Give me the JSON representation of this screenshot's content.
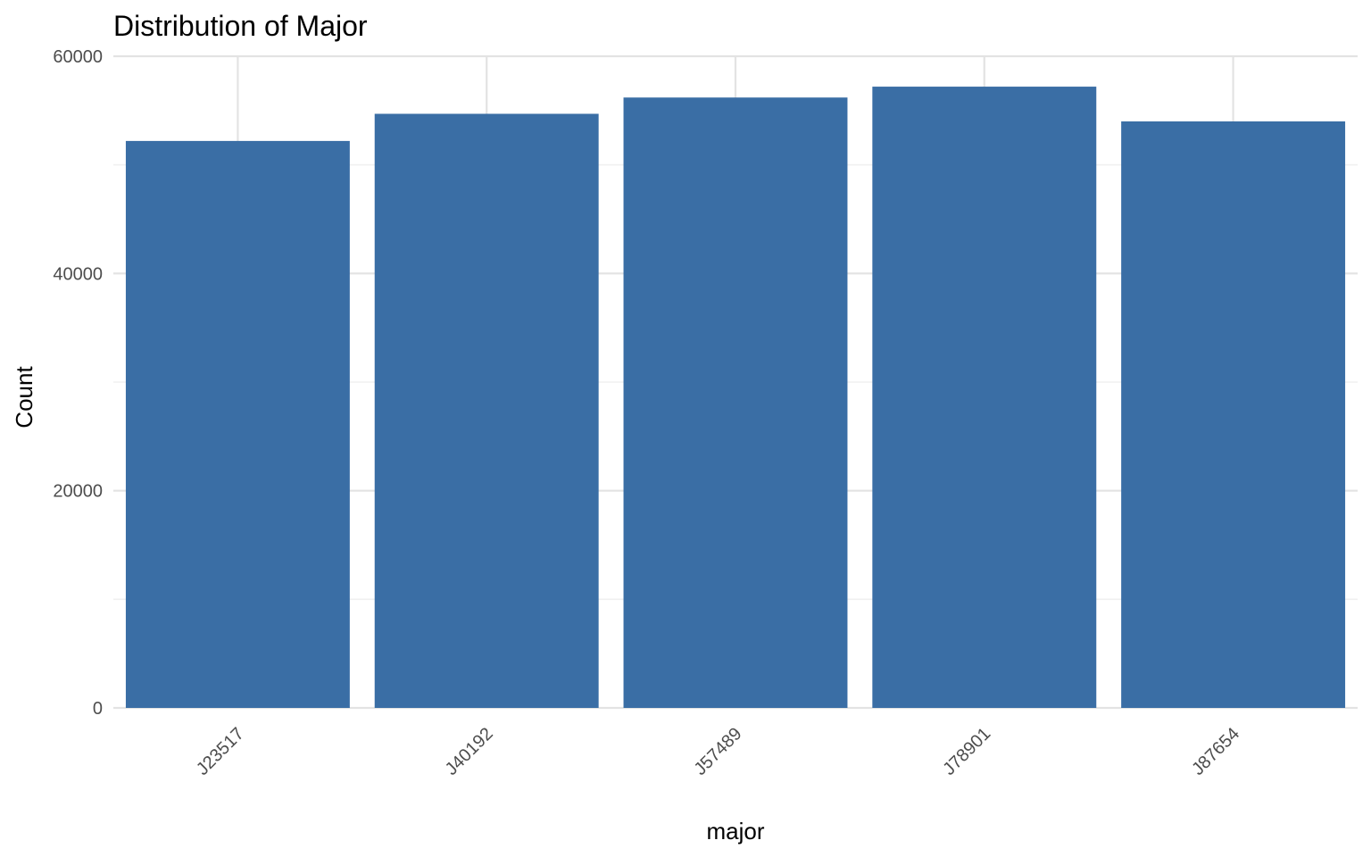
{
  "chart_data": {
    "type": "bar",
    "title": "Distribution of Major",
    "xlabel": "major",
    "ylabel": "Count",
    "categories": [
      "J23517",
      "J40192",
      "J57489",
      "J78901",
      "J87654"
    ],
    "values": [
      52200,
      54700,
      56200,
      57200,
      54000
    ],
    "ylim": [
      0,
      60000
    ],
    "yticks": [
      0,
      20000,
      40000,
      60000
    ],
    "ytick_labels": [
      "0",
      "20000",
      "40000",
      "60000"
    ],
    "y_minor_ticks": [
      10000,
      30000,
      50000
    ],
    "grid": true,
    "legend": "none",
    "bar_color": "#3a6ea5"
  }
}
